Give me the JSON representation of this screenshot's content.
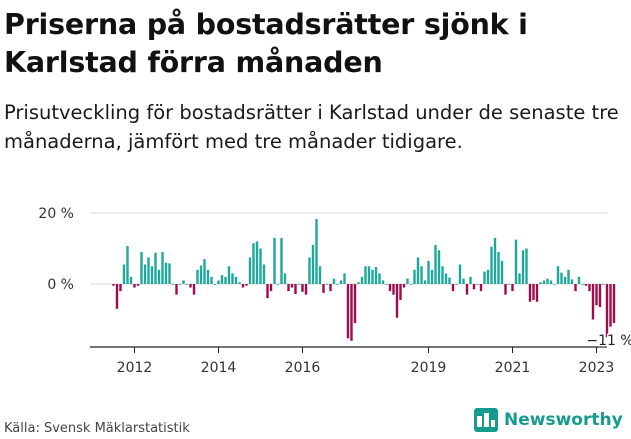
{
  "title": "Priserna på bostadsrätter sjönk i Karlstad förra månaden",
  "subtitle": "Prisutveckling för bostadsrätter i Karlstad under de senaste tre månaderna, jämfört med tre månader tidigare.",
  "source": "Källa: Svensk Mäklarstatistik",
  "logo_text": "Newsworthy",
  "colors": {
    "positive": "#1fa89a",
    "negative": "#9e0c4d",
    "grid": "#d9d9d9",
    "axis": "#222222"
  },
  "chart_data": {
    "type": "bar",
    "title": "",
    "xlabel": "",
    "ylabel": "",
    "ylim": [
      -18,
      22
    ],
    "y_ticks": [
      {
        "value": 20,
        "label": "20 %"
      },
      {
        "value": 0,
        "label": "0 %"
      }
    ],
    "x_ticks": [
      "2012",
      "2014",
      "2016",
      "2019",
      "2021",
      "2023"
    ],
    "start": "2011-07",
    "end": "2023-02",
    "annotation": {
      "label": "−11 %"
    },
    "values": [
      -0.5,
      -7,
      -2,
      5.5,
      10.7,
      2,
      -1,
      -0.5,
      9,
      5.5,
      7.5,
      5,
      8.8,
      4,
      9,
      6,
      5.8,
      0,
      -3,
      0,
      1,
      0,
      -1,
      -3,
      4,
      5.2,
      7,
      4,
      2,
      0,
      1,
      2.5,
      2,
      5,
      3,
      2,
      0.5,
      -1,
      -0.5,
      7.5,
      11.5,
      12,
      10,
      5.5,
      -4,
      -2,
      13,
      0,
      13,
      3,
      -2,
      -1,
      -2.8,
      0,
      -2.2,
      -3,
      7.5,
      11,
      18.3,
      5,
      -2.5,
      0,
      -2,
      1.5,
      0,
      1,
      3,
      -15.3,
      -16,
      -11,
      0.5,
      2,
      5,
      5,
      4,
      4.8,
      3,
      1,
      0,
      -2,
      -3,
      -9.5,
      -4.5,
      -1,
      1.5,
      0,
      4,
      7.5,
      5,
      1,
      6.5,
      4,
      11,
      9.5,
      5,
      3,
      1.8,
      -2,
      0,
      5.5,
      1.5,
      -3,
      2,
      -1.5,
      0,
      -2,
      3.5,
      4,
      10.5,
      13,
      9,
      6.5,
      -3,
      0,
      -2,
      12.5,
      3,
      9.5,
      10,
      -5,
      -4.5,
      -5,
      0.5,
      1,
      1.5,
      1,
      0,
      5,
      3.2,
      2,
      4,
      1.3,
      -2,
      2,
      0,
      -0.5,
      -2,
      -10,
      -6,
      -6.5,
      0,
      -15,
      -12,
      -11
    ]
  }
}
